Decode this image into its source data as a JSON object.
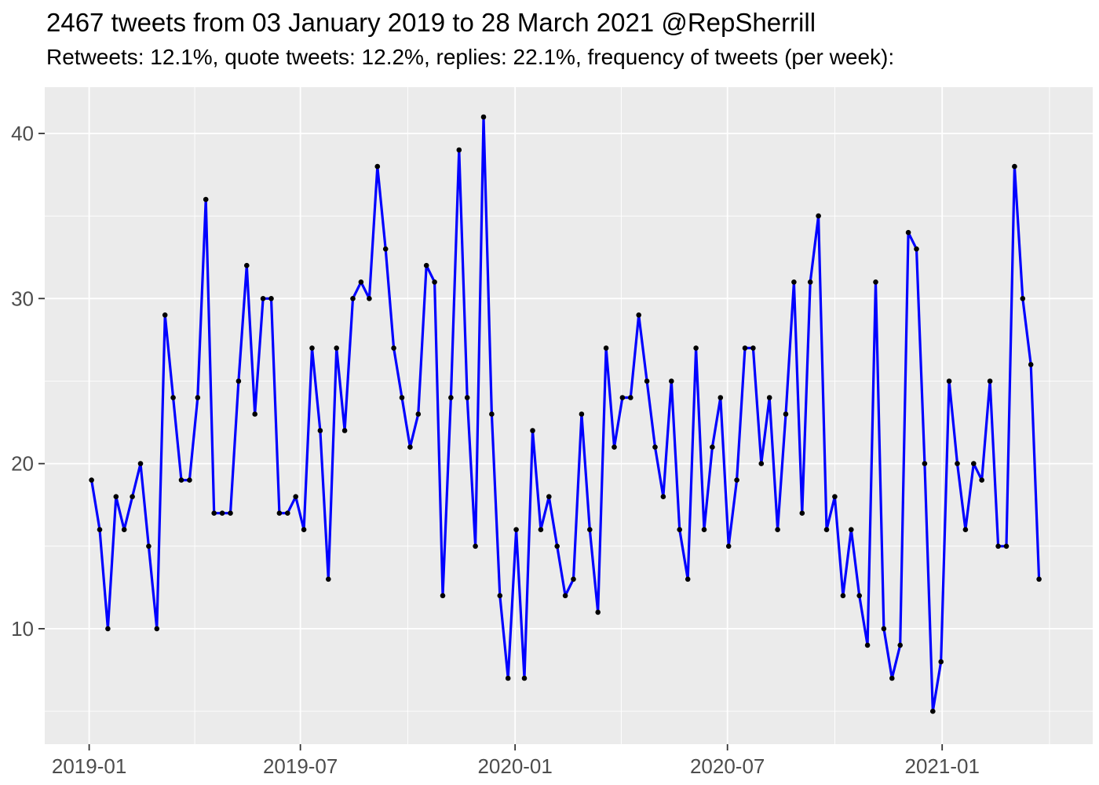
{
  "header": {
    "title": "2467 tweets from 03 January 2019 to 28 March 2021 @RepSherrill",
    "subtitle": "Retweets: 12.1%, quote tweets: 12.2%, replies: 22.1%, frequency of tweets (per week):"
  },
  "chart_data": {
    "type": "line",
    "title": "2467 tweets from 03 January 2019 to 28 March 2021 @RepSherrill",
    "subtitle": "Retweets: 12.1%, quote tweets: 12.2%, replies: 22.1%, frequency of tweets (per week):",
    "xlabel": "",
    "ylabel": "",
    "x_tick_labels": [
      "2019-01",
      "2019-07",
      "2020-01",
      "2020-07",
      "2021-01"
    ],
    "y_ticks": [
      10,
      20,
      30,
      40
    ],
    "y_minor_ticks": [
      5,
      15,
      25,
      35
    ],
    "ylim": [
      3.0,
      42.7
    ],
    "grid": "on",
    "legend": "none",
    "series": [
      {
        "name": "tweets per week",
        "x_start_date": "2019-01-03",
        "x_step_days": 7,
        "total": 2467,
        "values": [
          19,
          16,
          10,
          18,
          16,
          18,
          20,
          15,
          10,
          29,
          24,
          19,
          19,
          24,
          36,
          17,
          17,
          17,
          25,
          32,
          23,
          30,
          30,
          17,
          17,
          18,
          16,
          27,
          22,
          13,
          27,
          22,
          30,
          31,
          30,
          38,
          33,
          27,
          24,
          21,
          23,
          32,
          31,
          12,
          24,
          39,
          24,
          15,
          41,
          23,
          12,
          7,
          16,
          7,
          22,
          16,
          18,
          15,
          12,
          13,
          23,
          16,
          11,
          27,
          21,
          24,
          24,
          29,
          25,
          21,
          18,
          25,
          16,
          13,
          27,
          16,
          21,
          24,
          15,
          19,
          27,
          27,
          20,
          24,
          16,
          23,
          31,
          17,
          31,
          35,
          16,
          18,
          12,
          16,
          12,
          9,
          31,
          10,
          7,
          9,
          34,
          33,
          20,
          5,
          8,
          25,
          20,
          16,
          20,
          19,
          25,
          15,
          15,
          38,
          30,
          26,
          13
        ]
      }
    ],
    "colors": {
      "line": "#0000FF",
      "point": "#000000",
      "panel_background": "#EBEBEB",
      "gridline": "#FFFFFF",
      "axis_text": "#4D4D4D",
      "tick_mark": "#333333",
      "title_text": "#000000"
    }
  }
}
